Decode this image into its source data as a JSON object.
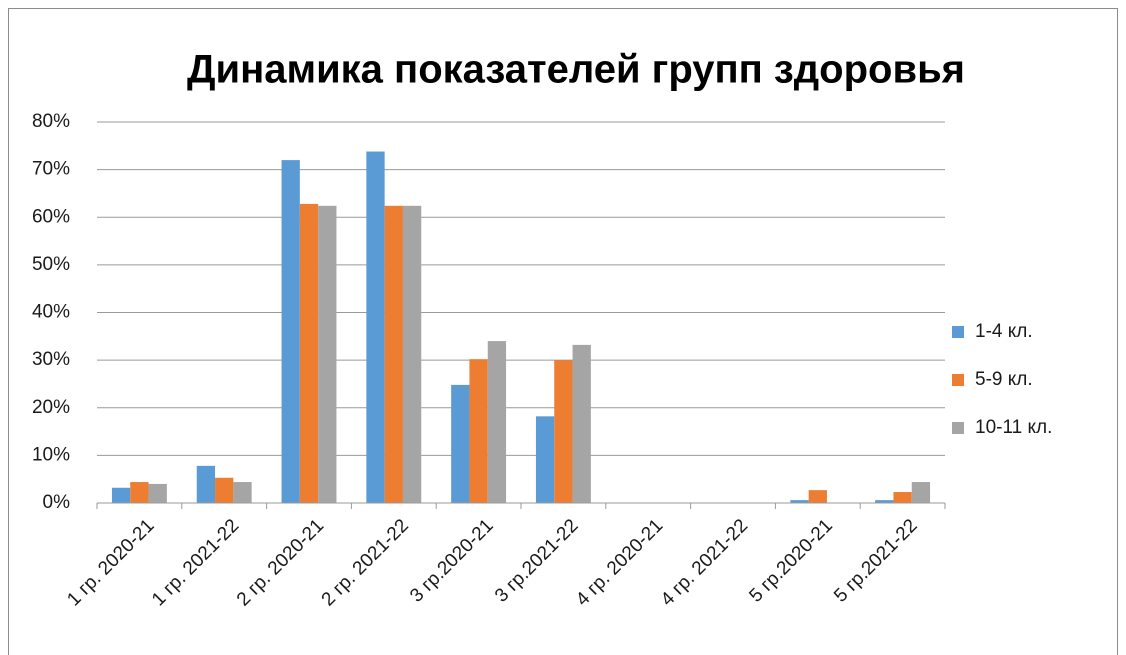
{
  "chart_data": {
    "type": "bar",
    "title": "Динамика показателей групп здоровья",
    "categories": [
      "1 гр. 2020-21",
      "1 гр. 2021-22",
      "2 гр. 2020-21",
      "2 гр. 2021-22",
      "3 гр.2020-21",
      "3 гр.2021-22",
      "4 гр. 2020-21",
      "4 гр. 2021-22",
      "5 гр.2020-21",
      "5 гр.2021-22"
    ],
    "series": [
      {
        "name": "1-4 кл.",
        "color": "#5b9bd5",
        "values": [
          3.2,
          7.8,
          72,
          73.8,
          24.8,
          18.2,
          0,
          0,
          0.6,
          0.6
        ]
      },
      {
        "name": "5-9 кл.",
        "color": "#ed7d31",
        "values": [
          4.4,
          5.3,
          62.8,
          62.4,
          30.2,
          30,
          0,
          0,
          2.7,
          2.3
        ]
      },
      {
        "name": "10-11 кл.",
        "color": "#a5a5a5",
        "values": [
          4,
          4.4,
          62.4,
          62.4,
          34,
          33.2,
          0,
          0,
          0,
          4.4
        ]
      }
    ],
    "ylim": [
      0,
      80
    ],
    "yticks": [
      {
        "value": 0,
        "label": "0%"
      },
      {
        "value": 10,
        "label": "10%"
      },
      {
        "value": 20,
        "label": "20%"
      },
      {
        "value": 30,
        "label": "30%"
      },
      {
        "value": 40,
        "label": "40%"
      },
      {
        "value": 50,
        "label": "50%"
      },
      {
        "value": 60,
        "label": "60%"
      },
      {
        "value": 70,
        "label": "70%"
      },
      {
        "value": 80,
        "label": "80%"
      }
    ],
    "grid": true,
    "legend_position": "right"
  }
}
